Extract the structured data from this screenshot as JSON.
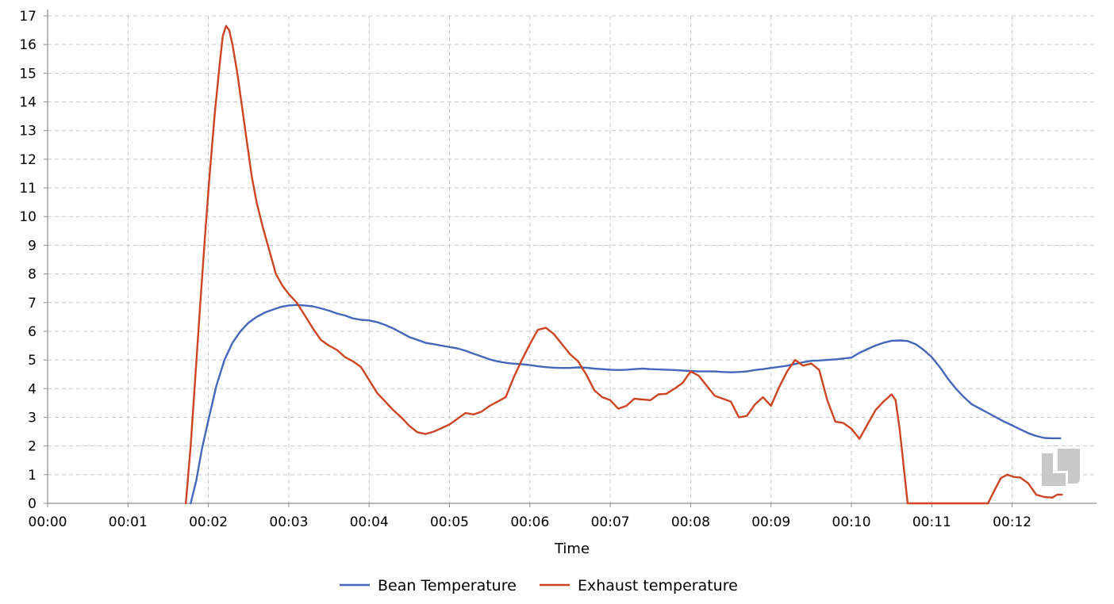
{
  "chart_data": {
    "type": "line",
    "title": "",
    "xlabel": "Time",
    "ylabel": "",
    "x_unit": "minutes",
    "xlim": [
      0,
      13.05
    ],
    "ylim": [
      0,
      17
    ],
    "x_ticks": [
      0,
      1,
      2,
      3,
      4,
      5,
      6,
      7,
      8,
      9,
      10,
      11,
      12
    ],
    "x_tick_labels": [
      "00:00",
      "00:01",
      "00:02",
      "00:03",
      "00:04",
      "00:05",
      "00:06",
      "00:07",
      "00:08",
      "00:09",
      "00:10",
      "00:11",
      "00:12"
    ],
    "y_ticks": [
      0,
      1,
      2,
      3,
      4,
      5,
      6,
      7,
      8,
      9,
      10,
      11,
      12,
      13,
      14,
      15,
      16,
      17
    ],
    "grid": true,
    "legend_position": "bottom-center",
    "series": [
      {
        "name": "Bean Temperature",
        "color": "#4466bb",
        "points": [
          [
            1.78,
            0
          ],
          [
            1.85,
            0.8
          ],
          [
            1.92,
            1.9
          ],
          [
            2.0,
            2.9
          ],
          [
            2.1,
            4.1
          ],
          [
            2.2,
            5.0
          ],
          [
            2.3,
            5.6
          ],
          [
            2.4,
            6.0
          ],
          [
            2.5,
            6.3
          ],
          [
            2.6,
            6.5
          ],
          [
            2.7,
            6.65
          ],
          [
            2.8,
            6.75
          ],
          [
            2.9,
            6.85
          ],
          [
            3.0,
            6.9
          ],
          [
            3.1,
            6.92
          ],
          [
            3.2,
            6.9
          ],
          [
            3.3,
            6.87
          ],
          [
            3.4,
            6.8
          ],
          [
            3.5,
            6.72
          ],
          [
            3.6,
            6.62
          ],
          [
            3.7,
            6.55
          ],
          [
            3.8,
            6.45
          ],
          [
            3.9,
            6.4
          ],
          [
            4.0,
            6.38
          ],
          [
            4.1,
            6.32
          ],
          [
            4.2,
            6.22
          ],
          [
            4.3,
            6.1
          ],
          [
            4.4,
            5.95
          ],
          [
            4.5,
            5.8
          ],
          [
            4.6,
            5.7
          ],
          [
            4.7,
            5.6
          ],
          [
            4.8,
            5.55
          ],
          [
            4.9,
            5.5
          ],
          [
            5.0,
            5.45
          ],
          [
            5.1,
            5.4
          ],
          [
            5.2,
            5.32
          ],
          [
            5.3,
            5.22
          ],
          [
            5.4,
            5.12
          ],
          [
            5.5,
            5.02
          ],
          [
            5.6,
            4.95
          ],
          [
            5.7,
            4.9
          ],
          [
            5.8,
            4.87
          ],
          [
            5.9,
            4.85
          ],
          [
            6.0,
            4.82
          ],
          [
            6.1,
            4.78
          ],
          [
            6.2,
            4.75
          ],
          [
            6.3,
            4.73
          ],
          [
            6.4,
            4.72
          ],
          [
            6.5,
            4.72
          ],
          [
            6.6,
            4.74
          ],
          [
            6.7,
            4.73
          ],
          [
            6.8,
            4.7
          ],
          [
            6.9,
            4.68
          ],
          [
            7.0,
            4.66
          ],
          [
            7.1,
            4.65
          ],
          [
            7.2,
            4.66
          ],
          [
            7.3,
            4.68
          ],
          [
            7.4,
            4.7
          ],
          [
            7.5,
            4.68
          ],
          [
            7.6,
            4.67
          ],
          [
            7.7,
            4.66
          ],
          [
            7.8,
            4.65
          ],
          [
            7.9,
            4.63
          ],
          [
            8.0,
            4.62
          ],
          [
            8.1,
            4.6
          ],
          [
            8.2,
            4.6
          ],
          [
            8.3,
            4.6
          ],
          [
            8.4,
            4.58
          ],
          [
            8.5,
            4.57
          ],
          [
            8.6,
            4.58
          ],
          [
            8.7,
            4.6
          ],
          [
            8.8,
            4.65
          ],
          [
            8.9,
            4.68
          ],
          [
            9.0,
            4.72
          ],
          [
            9.1,
            4.76
          ],
          [
            9.2,
            4.8
          ],
          [
            9.3,
            4.86
          ],
          [
            9.4,
            4.92
          ],
          [
            9.5,
            4.97
          ],
          [
            9.6,
            4.98
          ],
          [
            9.7,
            5.0
          ],
          [
            9.8,
            5.02
          ],
          [
            9.9,
            5.05
          ],
          [
            10.0,
            5.08
          ],
          [
            10.1,
            5.25
          ],
          [
            10.2,
            5.38
          ],
          [
            10.3,
            5.5
          ],
          [
            10.4,
            5.6
          ],
          [
            10.5,
            5.67
          ],
          [
            10.6,
            5.68
          ],
          [
            10.7,
            5.66
          ],
          [
            10.8,
            5.55
          ],
          [
            10.9,
            5.35
          ],
          [
            11.0,
            5.1
          ],
          [
            11.1,
            4.75
          ],
          [
            11.2,
            4.35
          ],
          [
            11.3,
            4.0
          ],
          [
            11.4,
            3.7
          ],
          [
            11.5,
            3.45
          ],
          [
            11.6,
            3.3
          ],
          [
            11.7,
            3.15
          ],
          [
            11.8,
            3.0
          ],
          [
            11.9,
            2.85
          ],
          [
            12.0,
            2.72
          ],
          [
            12.1,
            2.58
          ],
          [
            12.2,
            2.45
          ],
          [
            12.3,
            2.35
          ],
          [
            12.4,
            2.28
          ],
          [
            12.5,
            2.27
          ],
          [
            12.6,
            2.27
          ]
        ]
      },
      {
        "name": "Exhaust temperature",
        "color": "#cc4422",
        "points": [
          [
            1.72,
            0
          ],
          [
            1.78,
            2.0
          ],
          [
            1.84,
            4.5
          ],
          [
            1.9,
            7.0
          ],
          [
            1.96,
            9.4
          ],
          [
            2.02,
            11.6
          ],
          [
            2.08,
            13.6
          ],
          [
            2.14,
            15.3
          ],
          [
            2.18,
            16.3
          ],
          [
            2.22,
            16.65
          ],
          [
            2.26,
            16.5
          ],
          [
            2.3,
            16.0
          ],
          [
            2.36,
            15.0
          ],
          [
            2.42,
            13.8
          ],
          [
            2.48,
            12.6
          ],
          [
            2.54,
            11.4
          ],
          [
            2.6,
            10.5
          ],
          [
            2.68,
            9.6
          ],
          [
            2.76,
            8.8
          ],
          [
            2.84,
            8.0
          ],
          [
            2.92,
            7.6
          ],
          [
            3.0,
            7.3
          ],
          [
            3.1,
            7.0
          ],
          [
            3.2,
            6.55
          ],
          [
            3.3,
            6.1
          ],
          [
            3.4,
            5.7
          ],
          [
            3.5,
            5.5
          ],
          [
            3.6,
            5.35
          ],
          [
            3.7,
            5.1
          ],
          [
            3.8,
            4.95
          ],
          [
            3.9,
            4.75
          ],
          [
            4.0,
            4.3
          ],
          [
            4.1,
            3.85
          ],
          [
            4.2,
            3.55
          ],
          [
            4.3,
            3.25
          ],
          [
            4.4,
            3.0
          ],
          [
            4.5,
            2.7
          ],
          [
            4.6,
            2.48
          ],
          [
            4.7,
            2.42
          ],
          [
            4.8,
            2.5
          ],
          [
            4.9,
            2.62
          ],
          [
            5.0,
            2.75
          ],
          [
            5.1,
            2.95
          ],
          [
            5.2,
            3.15
          ],
          [
            5.3,
            3.1
          ],
          [
            5.4,
            3.2
          ],
          [
            5.5,
            3.4
          ],
          [
            5.6,
            3.55
          ],
          [
            5.7,
            3.7
          ],
          [
            5.8,
            4.4
          ],
          [
            5.9,
            5.0
          ],
          [
            6.0,
            5.55
          ],
          [
            6.1,
            6.05
          ],
          [
            6.2,
            6.12
          ],
          [
            6.3,
            5.9
          ],
          [
            6.4,
            5.55
          ],
          [
            6.5,
            5.2
          ],
          [
            6.6,
            4.95
          ],
          [
            6.7,
            4.5
          ],
          [
            6.8,
            3.95
          ],
          [
            6.9,
            3.7
          ],
          [
            7.0,
            3.6
          ],
          [
            7.1,
            3.3
          ],
          [
            7.2,
            3.4
          ],
          [
            7.3,
            3.65
          ],
          [
            7.4,
            3.62
          ],
          [
            7.5,
            3.6
          ],
          [
            7.6,
            3.8
          ],
          [
            7.7,
            3.82
          ],
          [
            7.8,
            4.0
          ],
          [
            7.9,
            4.2
          ],
          [
            8.0,
            4.6
          ],
          [
            8.1,
            4.45
          ],
          [
            8.2,
            4.1
          ],
          [
            8.3,
            3.75
          ],
          [
            8.4,
            3.65
          ],
          [
            8.5,
            3.55
          ],
          [
            8.6,
            3.0
          ],
          [
            8.7,
            3.05
          ],
          [
            8.8,
            3.45
          ],
          [
            8.9,
            3.7
          ],
          [
            9.0,
            3.4
          ],
          [
            9.1,
            4.05
          ],
          [
            9.2,
            4.6
          ],
          [
            9.3,
            5.0
          ],
          [
            9.4,
            4.8
          ],
          [
            9.5,
            4.88
          ],
          [
            9.6,
            4.65
          ],
          [
            9.7,
            3.6
          ],
          [
            9.8,
            2.85
          ],
          [
            9.9,
            2.8
          ],
          [
            10.0,
            2.6
          ],
          [
            10.1,
            2.25
          ],
          [
            10.2,
            2.75
          ],
          [
            10.3,
            3.25
          ],
          [
            10.4,
            3.55
          ],
          [
            10.5,
            3.8
          ],
          [
            10.55,
            3.6
          ],
          [
            10.6,
            2.6
          ],
          [
            10.65,
            1.3
          ],
          [
            10.7,
            0
          ],
          [
            11.7,
            0
          ],
          [
            11.78,
            0.45
          ],
          [
            11.86,
            0.88
          ],
          [
            11.94,
            1.0
          ],
          [
            12.02,
            0.92
          ],
          [
            12.1,
            0.9
          ],
          [
            12.2,
            0.7
          ],
          [
            12.3,
            0.3
          ],
          [
            12.4,
            0.22
          ],
          [
            12.5,
            0.2
          ],
          [
            12.56,
            0.3
          ],
          [
            12.62,
            0.3
          ]
        ]
      }
    ]
  },
  "watermark": {
    "icon": "app-logo-icon",
    "color": "#c8c8c8"
  }
}
